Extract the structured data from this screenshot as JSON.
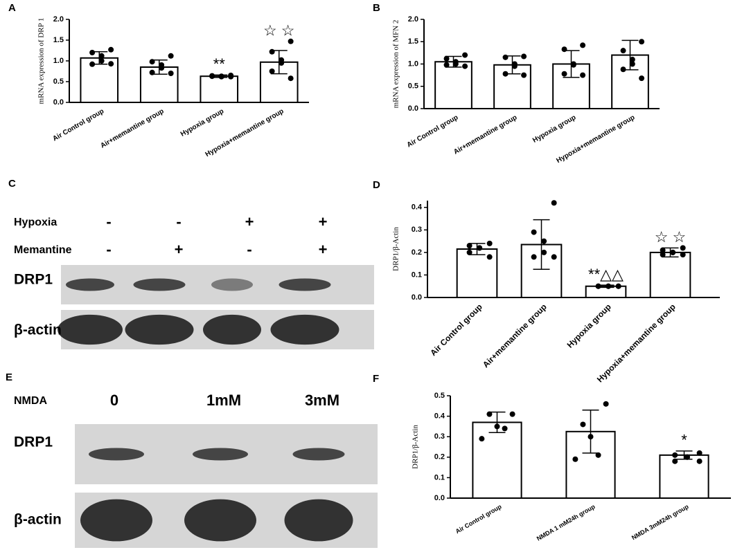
{
  "chart_data": [
    {
      "type": "bar",
      "panel": "A",
      "ylabel": "mRNA expression of DRP 1",
      "categories": [
        "Air Control group",
        "Air+memantine group",
        "Hypoxia group",
        "Hypoxia+memantine group"
      ],
      "values": [
        1.07,
        0.85,
        0.63,
        0.97
      ],
      "errors": [
        0.15,
        0.17,
        0.03,
        0.28
      ],
      "points": [
        [
          1.27,
          1.2,
          1.12,
          1.0,
          0.92,
          0.93
        ],
        [
          1.12,
          0.98,
          0.9,
          0.83,
          0.72,
          0.7
        ],
        [
          0.65,
          0.64,
          0.63,
          0.62,
          0.63,
          0.62
        ],
        [
          1.47,
          1.22,
          1.02,
          0.95,
          0.75,
          0.58
        ]
      ],
      "annotations": [
        null,
        null,
        "**",
        "☆ ☆"
      ],
      "ylim": [
        0,
        2.0
      ],
      "yticks": [
        {
          "value": 0,
          "label": "0.0"
        },
        {
          "value": 0.5,
          "label": "0.5"
        },
        {
          "value": 1,
          "label": "1.0"
        },
        {
          "value": 1.5,
          "label": "1.5"
        },
        {
          "value": 2,
          "label": "2.0"
        }
      ],
      "bar_color": "#ffffff",
      "edge_color": "#000000",
      "point_color": "#000000"
    },
    {
      "type": "bar",
      "panel": "B",
      "ylabel": "mRNA expression of MFN 2",
      "categories": [
        "Air Control group",
        "Air+memantine group",
        "Hypoxia group",
        "Hypoxia+memantine group"
      ],
      "values": [
        1.05,
        0.98,
        1.0,
        1.2
      ],
      "errors": [
        0.12,
        0.2,
        0.3,
        0.33
      ],
      "points": [
        [
          1.2,
          1.12,
          1.05,
          1.0,
          0.98,
          0.95
        ],
        [
          1.17,
          1.15,
          1.0,
          0.95,
          0.78,
          0.75
        ],
        [
          1.42,
          1.33,
          1.0,
          0.98,
          0.78,
          0.75
        ],
        [
          1.5,
          1.3,
          1.1,
          1.0,
          0.88,
          0.68
        ]
      ],
      "annotations": [
        null,
        null,
        null,
        null
      ],
      "ylim": [
        0,
        2.0
      ],
      "yticks": [
        {
          "value": 0,
          "label": "0.0"
        },
        {
          "value": 0.5,
          "label": "0.5"
        },
        {
          "value": 1,
          "label": "1.0"
        },
        {
          "value": 1.5,
          "label": "1.5"
        },
        {
          "value": 2,
          "label": "2.0"
        }
      ],
      "bar_color": "#ffffff",
      "edge_color": "#000000",
      "point_color": "#000000"
    },
    {
      "type": "bar",
      "panel": "D",
      "ylabel": "DRP1/β-Actin",
      "categories": [
        "Air Control group",
        "Air+memantine group",
        "Hypoxia group",
        "Hypoxia+memantine group"
      ],
      "values": [
        0.215,
        0.235,
        0.05,
        0.2
      ],
      "errors": [
        0.025,
        0.11,
        0.005,
        0.02
      ],
      "points": [
        [
          0.24,
          0.23,
          0.22,
          0.22,
          0.2,
          0.18
        ],
        [
          0.42,
          0.29,
          0.25,
          0.2,
          0.18,
          0.18
        ],
        [
          0.05,
          0.05,
          0.05,
          0.05,
          0.05,
          0.05
        ],
        [
          0.22,
          0.21,
          0.2,
          0.2,
          0.19,
          0.19
        ]
      ],
      "annotations": [
        null,
        null,
        "**△△",
        "☆ ☆"
      ],
      "ylim": [
        0,
        0.43
      ],
      "yticks": [
        {
          "value": 0,
          "label": "0.0"
        },
        0.1,
        0.2,
        0.3,
        0.4
      ],
      "bar_color": "#ffffff",
      "edge_color": "#000000",
      "point_color": "#000000"
    },
    {
      "type": "bar",
      "panel": "F",
      "ylabel": "DRP1/β-Actin",
      "categories": [
        "Air Control group",
        "NMDA 1 mM24h group",
        "NMDA 3mM24h group"
      ],
      "values": [
        0.37,
        0.325,
        0.21
      ],
      "errors": [
        0.05,
        0.105,
        0.02
      ],
      "points": [
        [
          0.41,
          0.41,
          0.35,
          0.34,
          0.29
        ],
        [
          0.46,
          0.36,
          0.3,
          0.21,
          0.19
        ],
        [
          0.22,
          0.21,
          0.2,
          0.2,
          0.18,
          0.18
        ]
      ],
      "annotations": [
        null,
        null,
        "*"
      ],
      "ylim": [
        0,
        0.5
      ],
      "yticks": [
        {
          "value": 0,
          "label": "0.0"
        },
        0.1,
        0.2,
        0.3,
        0.4,
        0.5
      ],
      "bar_color": "#ffffff",
      "edge_color": "#000000",
      "point_color": "#000000"
    }
  ],
  "blots": [
    {
      "panel": "C",
      "conditions": [
        {
          "label": "Hypoxia",
          "signs": [
            "-",
            "-",
            "+",
            "+"
          ]
        },
        {
          "label": "Memantine",
          "signs": [
            "-",
            "+",
            "-",
            "+"
          ]
        }
      ],
      "bands": [
        "DRP1",
        "β-actin"
      ]
    },
    {
      "panel": "E",
      "conditions": [
        {
          "label": "NMDA",
          "signs": [
            "0",
            "1mM",
            "3mM"
          ]
        }
      ],
      "bands": [
        "DRP1",
        "β-actin"
      ]
    }
  ]
}
